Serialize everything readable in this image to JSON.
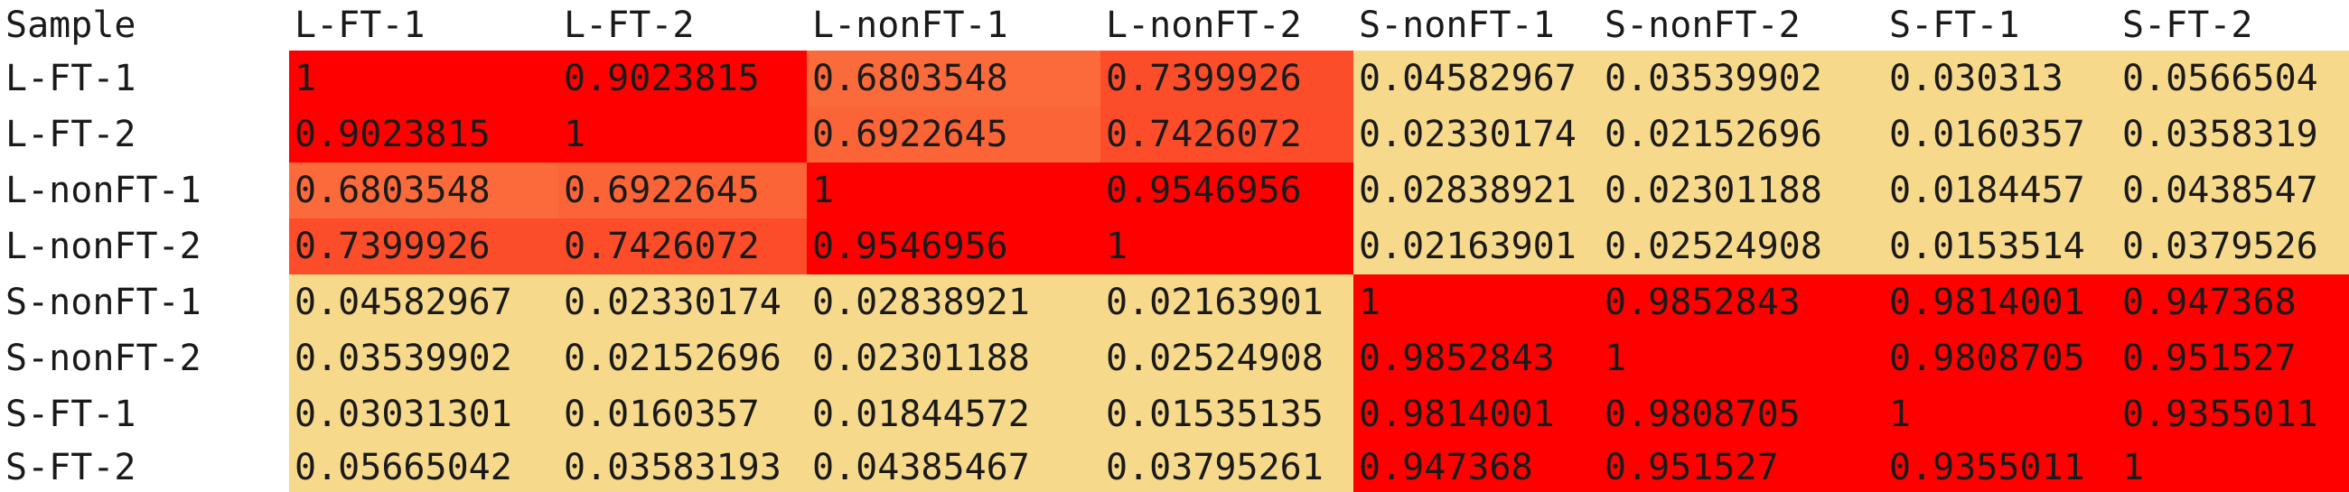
{
  "chart_data": {
    "type": "heatmap",
    "corner_label": "Sample",
    "columns": [
      "L-FT-1",
      "L-FT-2",
      "L-nonFT-1",
      "L-nonFT-2",
      "S-nonFT-1",
      "S-nonFT-2",
      "S-FT-1",
      "S-FT-2"
    ],
    "rows": [
      {
        "label": "L-FT-1",
        "values": [
          "1",
          "0.9023815",
          "0.6803548",
          "0.7399926",
          "0.04582967",
          "0.03539902",
          "0.030313",
          "0.0566504"
        ]
      },
      {
        "label": "L-FT-2",
        "values": [
          "0.9023815",
          "1",
          "0.6922645",
          "0.7426072",
          "0.02330174",
          "0.02152696",
          "0.0160357",
          "0.0358319"
        ]
      },
      {
        "label": "L-nonFT-1",
        "values": [
          "0.6803548",
          "0.6922645",
          "1",
          "0.9546956",
          "0.02838921",
          "0.02301188",
          "0.0184457",
          "0.0438547"
        ]
      },
      {
        "label": "L-nonFT-2",
        "values": [
          "0.7399926",
          "0.7426072",
          "0.9546956",
          "1",
          "0.02163901",
          "0.02524908",
          "0.0153514",
          "0.0379526"
        ]
      },
      {
        "label": "S-nonFT-1",
        "values": [
          "0.04582967",
          "0.02330174",
          "0.02838921",
          "0.02163901",
          "1",
          "0.9852843",
          "0.9814001",
          "0.947368"
        ]
      },
      {
        "label": "S-nonFT-2",
        "values": [
          "0.03539902",
          "0.02152696",
          "0.02301188",
          "0.02524908",
          "0.9852843",
          "1",
          "0.9808705",
          "0.951527"
        ]
      },
      {
        "label": "S-FT-1",
        "values": [
          "0.03031301",
          "0.0160357",
          "0.01844572",
          "0.01535135",
          "0.9814001",
          "0.9808705",
          "1",
          "0.9355011"
        ]
      },
      {
        "label": "S-FT-2",
        "values": [
          "0.05665042",
          "0.03583193",
          "0.04385467",
          "0.03795261",
          "0.947368",
          "0.951527",
          "0.9355011",
          "1"
        ]
      }
    ],
    "color_scale": {
      "low": "#f7d98b",
      "mid": "#fb6a3a",
      "high": "#ff0000"
    }
  }
}
